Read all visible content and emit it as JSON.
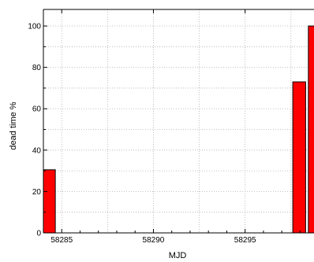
{
  "chart_data": {
    "type": "bar",
    "xlabel": "MJD",
    "ylabel": "dead time %",
    "xlim": [
      58284.0,
      58298.8
    ],
    "ylim": [
      0,
      108
    ],
    "x_ticks": [
      58285,
      58290,
      58295
    ],
    "y_ticks": [
      0,
      20,
      40,
      60,
      80,
      100
    ],
    "grid": true,
    "bar_width_days": 0.7,
    "bars": [
      {
        "x": 58284.3,
        "value": 30.5
      },
      {
        "x": 58297.95,
        "value": 73
      },
      {
        "x": 58298.8,
        "value": 100
      }
    ],
    "colors": {
      "bar_fill": "#ff0000",
      "bar_edge": "#000000",
      "grid": "#b0b0b0"
    }
  }
}
